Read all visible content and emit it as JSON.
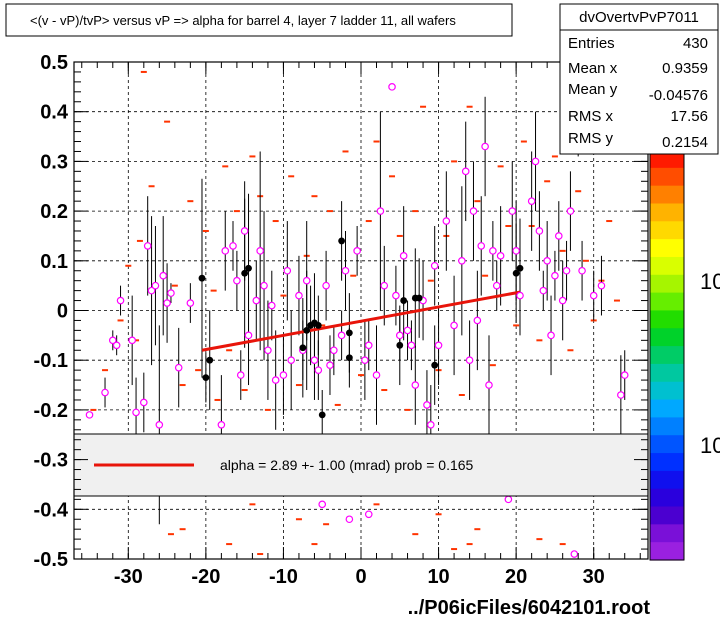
{
  "title": "<(v - vP)/tvP> versus   vP => alpha for barrel 4, layer 7 ladder 11, all wafers",
  "footer": "../P06icFiles/6042101.root",
  "stats": {
    "name": "dvOvertvPvP7011",
    "rows": [
      {
        "label": "Entries",
        "value": "430"
      },
      {
        "label": "Mean x",
        "value": "0.9359"
      },
      {
        "label": "Mean y",
        "value": "-0.04576"
      },
      {
        "label": "RMS x",
        "value": "17.56"
      },
      {
        "label": "RMS y",
        "value": "0.2154"
      }
    ]
  },
  "fit_legend": "alpha =    2.89 +-  1.00 (mrad) prob = 0.165",
  "palette_labels": [
    "10",
    "10"
  ],
  "colors": {
    "fit_line": "#e8140a",
    "marker_open": "#ff00ff",
    "marker_filled": "#000000",
    "dash": "#ff3300"
  },
  "chart_data": {
    "type": "scatter",
    "title": "<(v - vP)/tvP> versus   vP => alpha for barrel 4, layer 7 ladder 11, all wafers",
    "xlim": [
      -37,
      37
    ],
    "ylim": [
      -0.5,
      0.5
    ],
    "x_ticks": [
      -30,
      -20,
      -10,
      0,
      10,
      20,
      30
    ],
    "y_ticks": [
      -0.5,
      -0.4,
      -0.3,
      -0.2,
      -0.1,
      0,
      0.1,
      0.2,
      0.3,
      0.4,
      0.5
    ],
    "x_tick_labels": [
      "-30",
      "-20",
      "-10",
      "0",
      "10",
      "20",
      "30"
    ],
    "y_tick_labels": [
      "-0.5",
      "-0.4",
      "-0.3",
      "-0.2",
      "-0.1",
      "0",
      "0.1",
      "0.2",
      "0.3",
      "0.4",
      "0.5"
    ],
    "grid": true,
    "fit": {
      "x": [
        -20.5,
        20.5
      ],
      "y": [
        -0.08,
        0.037
      ]
    },
    "profile_open": [
      {
        "x": -35,
        "y": -0.21,
        "e": 0
      },
      {
        "x": -33,
        "y": -0.165,
        "e": 0.03
      },
      {
        "x": -32,
        "y": -0.06,
        "e": 0.02
      },
      {
        "x": -31.5,
        "y": -0.07,
        "e": 0.02
      },
      {
        "x": -31,
        "y": 0.02,
        "e": 0.03
      },
      {
        "x": -29.5,
        "y": -0.06,
        "e": 0.09
      },
      {
        "x": -29,
        "y": -0.205,
        "e": 0.07
      },
      {
        "x": -28,
        "y": -0.185,
        "e": 0.06
      },
      {
        "x": -27.5,
        "y": 0.13,
        "e": 0.1
      },
      {
        "x": -27,
        "y": 0.04,
        "e": 0.15
      },
      {
        "x": -26.5,
        "y": 0.05,
        "e": 0.12
      },
      {
        "x": -26,
        "y": -0.23,
        "e": 0.2
      },
      {
        "x": -25.5,
        "y": 0.07,
        "e": 0.12
      },
      {
        "x": -25,
        "y": 0.015,
        "e": 0.08
      },
      {
        "x": -24.5,
        "y": 0.035,
        "e": 0.02
      },
      {
        "x": -23.5,
        "y": -0.115,
        "e": 0.08
      },
      {
        "x": -22,
        "y": 0.015,
        "e": 0.04
      },
      {
        "x": -18,
        "y": -0.23,
        "e": 0.1
      },
      {
        "x": -17.5,
        "y": 0.12,
        "e": 0.08
      },
      {
        "x": -16.5,
        "y": 0.13,
        "e": 0.05
      },
      {
        "x": -16,
        "y": 0.06,
        "e": 0.06
      },
      {
        "x": -15.5,
        "y": -0.13,
        "e": 0.05
      },
      {
        "x": -15,
        "y": 0.16,
        "e": 0.1
      },
      {
        "x": -14.5,
        "y": -0.05,
        "e": 0.1
      },
      {
        "x": -13.5,
        "y": 0.02,
        "e": 0.08
      },
      {
        "x": -13,
        "y": 0.12,
        "e": 0.2
      },
      {
        "x": -12.5,
        "y": 0.05,
        "e": 0.15
      },
      {
        "x": -12,
        "y": -0.08,
        "e": 0.1
      },
      {
        "x": -11.5,
        "y": 0.01,
        "e": 0.07
      },
      {
        "x": -11,
        "y": -0.14,
        "e": 0.1
      },
      {
        "x": -10,
        "y": -0.13,
        "e": 0.08
      },
      {
        "x": -9.5,
        "y": 0.08,
        "e": 0.1
      },
      {
        "x": -9,
        "y": -0.1,
        "e": 0.1
      },
      {
        "x": -8,
        "y": 0.03,
        "e": 0.08
      },
      {
        "x": -7.5,
        "y": -0.08,
        "e": 0.06
      },
      {
        "x": -7,
        "y": 0.06,
        "e": 0.12
      },
      {
        "x": -6,
        "y": -0.1,
        "e": 0.08
      },
      {
        "x": -5.5,
        "y": -0.12,
        "e": 0.06
      },
      {
        "x": -4.5,
        "y": 0.05,
        "e": 0.07
      },
      {
        "x": -4,
        "y": -0.11,
        "e": 0.06
      },
      {
        "x": -3.5,
        "y": -0.08,
        "e": 0.05
      },
      {
        "x": -2.5,
        "y": -0.05,
        "e": 0.05
      },
      {
        "x": -2,
        "y": 0.08,
        "e": 0.08
      },
      {
        "x": -0.5,
        "y": 0.12,
        "e": 0.05
      },
      {
        "x": 0.5,
        "y": -0.1,
        "e": 0.08
      },
      {
        "x": 1,
        "y": -0.07,
        "e": 0.05
      },
      {
        "x": 2,
        "y": -0.13,
        "e": 0.1
      },
      {
        "x": 2.5,
        "y": 0.2,
        "e": 0.2
      },
      {
        "x": 3,
        "y": 0.05,
        "e": 0.08
      },
      {
        "x": 4,
        "y": 0.45,
        "e": 0
      },
      {
        "x": 4.5,
        "y": 0.03,
        "e": 0.06
      },
      {
        "x": 5,
        "y": -0.05,
        "e": 0.05
      },
      {
        "x": 5.5,
        "y": 0.11,
        "e": 0.1
      },
      {
        "x": 6,
        "y": -0.04,
        "e": 0.06
      },
      {
        "x": 6.5,
        "y": -0.07,
        "e": 0.05
      },
      {
        "x": 7,
        "y": -0.15,
        "e": 0.08
      },
      {
        "x": 8,
        "y": 0.02,
        "e": 0.08
      },
      {
        "x": 8.5,
        "y": -0.19,
        "e": 0.07
      },
      {
        "x": 9,
        "y": -0.23,
        "e": 0.08
      },
      {
        "x": 9.5,
        "y": 0.09,
        "e": 0.08
      },
      {
        "x": 10,
        "y": -0.07,
        "e": 0.08
      },
      {
        "x": 11,
        "y": 0.18,
        "e": 0.1
      },
      {
        "x": 12,
        "y": -0.03,
        "e": 0.1
      },
      {
        "x": 13,
        "y": 0.1,
        "e": 0.15
      },
      {
        "x": 13.5,
        "y": 0.28,
        "e": 0.1
      },
      {
        "x": 14,
        "y": -0.1,
        "e": 0.08
      },
      {
        "x": 14.5,
        "y": 0.2,
        "e": 0.1
      },
      {
        "x": 15,
        "y": -0.02,
        "e": 0.1
      },
      {
        "x": 15.5,
        "y": 0.13,
        "e": 0.1
      },
      {
        "x": 16,
        "y": 0.33,
        "e": 0.1
      },
      {
        "x": 16.5,
        "y": -0.15,
        "e": 0.1
      },
      {
        "x": 17,
        "y": 0.12,
        "e": 0.06
      },
      {
        "x": 17.5,
        "y": 0.05,
        "e": 0.05
      },
      {
        "x": 18,
        "y": 0.11,
        "e": 0.1
      },
      {
        "x": 19,
        "y": -0.38,
        "e": 0
      },
      {
        "x": 19.5,
        "y": 0.2,
        "e": 0.1
      },
      {
        "x": 20,
        "y": 0.12,
        "e": 0.1
      },
      {
        "x": 20.5,
        "y": 0.03,
        "e": 0.08
      },
      {
        "x": 22,
        "y": 0.22,
        "e": 0.1
      },
      {
        "x": 22.5,
        "y": 0.3,
        "e": 0.1
      },
      {
        "x": 23,
        "y": 0.16,
        "e": 0.08
      },
      {
        "x": 23.5,
        "y": 0.04,
        "e": 0.04
      },
      {
        "x": 24,
        "y": 0.1,
        "e": 0.08
      },
      {
        "x": 24.5,
        "y": -0.05,
        "e": 0.08
      },
      {
        "x": 25,
        "y": 0.07,
        "e": 0.05
      },
      {
        "x": 25.5,
        "y": 0.15,
        "e": 0.07
      },
      {
        "x": 26,
        "y": 0.02,
        "e": 0.08
      },
      {
        "x": 26.5,
        "y": 0.08,
        "e": 0.06
      },
      {
        "x": 27,
        "y": 0.2,
        "e": 0.08
      },
      {
        "x": 27.5,
        "y": -0.49,
        "e": 0
      },
      {
        "x": 28,
        "y": 0.37,
        "e": 0.06
      },
      {
        "x": 28.5,
        "y": 0.08,
        "e": 0.06
      },
      {
        "x": 30,
        "y": 0.03,
        "e": 0.05
      },
      {
        "x": 31,
        "y": 0.05,
        "e": 0.06
      },
      {
        "x": 33.5,
        "y": -0.17,
        "e": 0.08
      },
      {
        "x": 34,
        "y": -0.13,
        "e": 0.05
      },
      {
        "x": -5,
        "y": -0.39,
        "e": 0
      },
      {
        "x": -1.5,
        "y": -0.42,
        "e": 0
      },
      {
        "x": 1,
        "y": -0.41,
        "e": 0
      }
    ],
    "profile_filled": [
      {
        "x": -20.5,
        "y": 0.065,
        "e": 0.2
      },
      {
        "x": -20,
        "y": -0.135,
        "e": 0.05
      },
      {
        "x": -19.5,
        "y": -0.1,
        "e": 0.1
      },
      {
        "x": -15,
        "y": 0.075,
        "e": 0.15
      },
      {
        "x": -14.5,
        "y": 0.085,
        "e": 0.15
      },
      {
        "x": -7,
        "y": -0.04,
        "e": 0.12
      },
      {
        "x": -6.5,
        "y": -0.03,
        "e": 0.08
      },
      {
        "x": -6,
        "y": -0.025,
        "e": 0.1
      },
      {
        "x": -5.5,
        "y": -0.03,
        "e": 0.06
      },
      {
        "x": -7.5,
        "y": -0.075,
        "e": 0.1
      },
      {
        "x": -5,
        "y": -0.21,
        "e": 0.05
      },
      {
        "x": -2.5,
        "y": 0.14,
        "e": 0.08
      },
      {
        "x": -1.5,
        "y": -0.045,
        "e": 0.08
      },
      {
        "x": -1.5,
        "y": -0.095,
        "e": 0.06
      },
      {
        "x": 5.5,
        "y": 0.02,
        "e": 0.08
      },
      {
        "x": 5,
        "y": -0.07,
        "e": 0.08
      },
      {
        "x": 7,
        "y": 0.025,
        "e": 0.1
      },
      {
        "x": 7.5,
        "y": 0.025,
        "e": 0.08
      },
      {
        "x": 9.5,
        "y": -0.11,
        "e": 0.08
      },
      {
        "x": 20,
        "y": 0.075,
        "e": 0.1
      },
      {
        "x": 20.5,
        "y": 0.085,
        "e": 0.1
      }
    ],
    "dashes": [
      {
        "x": -34.5,
        "y": -0.2
      },
      {
        "x": -33,
        "y": -0.12
      },
      {
        "x": -31,
        "y": -0.02
      },
      {
        "x": -30,
        "y": 0.09
      },
      {
        "x": -29,
        "y": -0.06
      },
      {
        "x": -28.5,
        "y": 0.14
      },
      {
        "x": -28,
        "y": 0.48
      },
      {
        "x": -27,
        "y": 0.25
      },
      {
        "x": -25,
        "y": 0.38
      },
      {
        "x": -24,
        "y": 0.05
      },
      {
        "x": -23,
        "y": -0.15
      },
      {
        "x": -22,
        "y": 0.22
      },
      {
        "x": -21,
        "y": -0.12
      },
      {
        "x": -20,
        "y": 0.16
      },
      {
        "x": -19,
        "y": 0.04
      },
      {
        "x": -18.5,
        "y": -0.18
      },
      {
        "x": -17.5,
        "y": 0.29
      },
      {
        "x": -17,
        "y": -0.08
      },
      {
        "x": -16,
        "y": 0.2
      },
      {
        "x": -15,
        "y": -0.16
      },
      {
        "x": -14,
        "y": 0.31
      },
      {
        "x": -13,
        "y": 0.23
      },
      {
        "x": -12,
        "y": -0.2
      },
      {
        "x": -11,
        "y": 0.18
      },
      {
        "x": -10,
        "y": 0.03
      },
      {
        "x": -9,
        "y": 0.27
      },
      {
        "x": -8,
        "y": -0.15
      },
      {
        "x": -7,
        "y": 0.11
      },
      {
        "x": -6,
        "y": 0.23
      },
      {
        "x": -5,
        "y": -0.03
      },
      {
        "x": -4,
        "y": 0.2
      },
      {
        "x": -3,
        "y": -0.19
      },
      {
        "x": -2,
        "y": 0.32
      },
      {
        "x": -1,
        "y": 0.07
      },
      {
        "x": 0,
        "y": -0.13
      },
      {
        "x": 1,
        "y": 0.18
      },
      {
        "x": 2,
        "y": 0.34
      },
      {
        "x": 3,
        "y": -0.16
      },
      {
        "x": 4,
        "y": 0.27
      },
      {
        "x": 5,
        "y": 0.15
      },
      {
        "x": 6,
        "y": -0.2
      },
      {
        "x": 7,
        "y": 0.2
      },
      {
        "x": 8,
        "y": 0.41
      },
      {
        "x": 9,
        "y": 0.06
      },
      {
        "x": 10,
        "y": -0.12
      },
      {
        "x": 11,
        "y": 0.15
      },
      {
        "x": 12,
        "y": 0.3
      },
      {
        "x": 13,
        "y": -0.17
      },
      {
        "x": 14,
        "y": 0.41
      },
      {
        "x": 15,
        "y": 0.22
      },
      {
        "x": 16,
        "y": 0.07
      },
      {
        "x": 17,
        "y": -0.11
      },
      {
        "x": 18,
        "y": 0.29
      },
      {
        "x": 19,
        "y": 0.17
      },
      {
        "x": 20,
        "y": -0.03
      },
      {
        "x": 21,
        "y": 0.34
      },
      {
        "x": 22,
        "y": 0.17
      },
      {
        "x": 23,
        "y": -0.06
      },
      {
        "x": 24,
        "y": 0.26
      },
      {
        "x": 25,
        "y": 0.31
      },
      {
        "x": 26,
        "y": 0.12
      },
      {
        "x": 27,
        "y": -0.08
      },
      {
        "x": 28,
        "y": 0.24
      },
      {
        "x": 29,
        "y": 0.1
      },
      {
        "x": 30,
        "y": -0.02
      },
      {
        "x": 31,
        "y": 0.06
      },
      {
        "x": 32,
        "y": 0.18
      },
      {
        "x": 33,
        "y": 0.02
      },
      {
        "x": -23,
        "y": -0.44
      },
      {
        "x": -17,
        "y": -0.47
      },
      {
        "x": -14,
        "y": -0.39
      },
      {
        "x": -13,
        "y": -0.49
      },
      {
        "x": -8,
        "y": -0.42
      },
      {
        "x": -6,
        "y": -0.47
      },
      {
        "x": -4.5,
        "y": -0.43
      },
      {
        "x": 2,
        "y": -0.39
      },
      {
        "x": 7,
        "y": -0.45
      },
      {
        "x": 10,
        "y": -0.41
      },
      {
        "x": 12,
        "y": -0.48
      },
      {
        "x": 14,
        "y": -0.47
      },
      {
        "x": 23,
        "y": -0.46
      },
      {
        "x": 26,
        "y": -0.47
      },
      {
        "x": 15,
        "y": -0.44
      },
      {
        "x": -24.5,
        "y": -0.45
      }
    ]
  }
}
